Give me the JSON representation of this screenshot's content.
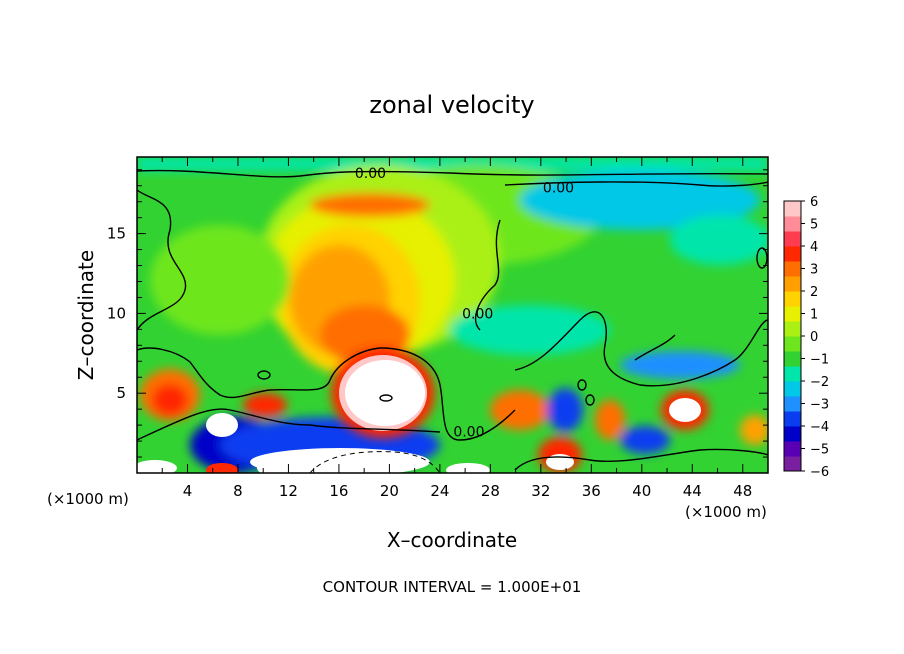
{
  "chart_data": {
    "type": "heatmap",
    "title": "zonal velocity",
    "xlabel": "X–coordinate",
    "ylabel": "Z–coordinate",
    "x_unit_left": "(×1000 m)",
    "x_unit_right": "(×1000 m)",
    "xlim": [
      0,
      50
    ],
    "ylim": [
      0,
      19.8
    ],
    "x_ticks": [
      "4",
      "8",
      "12",
      "16",
      "20",
      "24",
      "28",
      "32",
      "36",
      "40",
      "44",
      "48"
    ],
    "y_ticks": [
      "5",
      "10",
      "15"
    ],
    "colorbar": {
      "range": [
        -6,
        6
      ],
      "ticks": [
        "6",
        "5",
        "4",
        "3",
        "2",
        "1",
        "0",
        "−1",
        "−2",
        "−3",
        "−4",
        "−5",
        "−6"
      ],
      "colors": [
        "#7a1fa0",
        "#5a00b4",
        "#0000c8",
        "#0a3cf0",
        "#1e90ff",
        "#00c8e6",
        "#00e6aa",
        "#32d232",
        "#6ee61e",
        "#aaf014",
        "#e6f000",
        "#ffd200",
        "#ffa000",
        "#ff6e00",
        "#ff2800",
        "#ff3c50",
        "#ff8c96",
        "#ffc8c8"
      ]
    },
    "contour_labels": [
      {
        "text": "0.00",
        "x": 18.5,
        "z": 18.8
      },
      {
        "text": "0.00",
        "x": 33.4,
        "z": 17.9
      },
      {
        "text": "0.00",
        "x": 27.0,
        "z": 10.0
      },
      {
        "text": "0.00",
        "x": 26.3,
        "z": 2.6
      }
    ],
    "footer": "CONTOUR INTERVAL = 1.000E+01"
  }
}
